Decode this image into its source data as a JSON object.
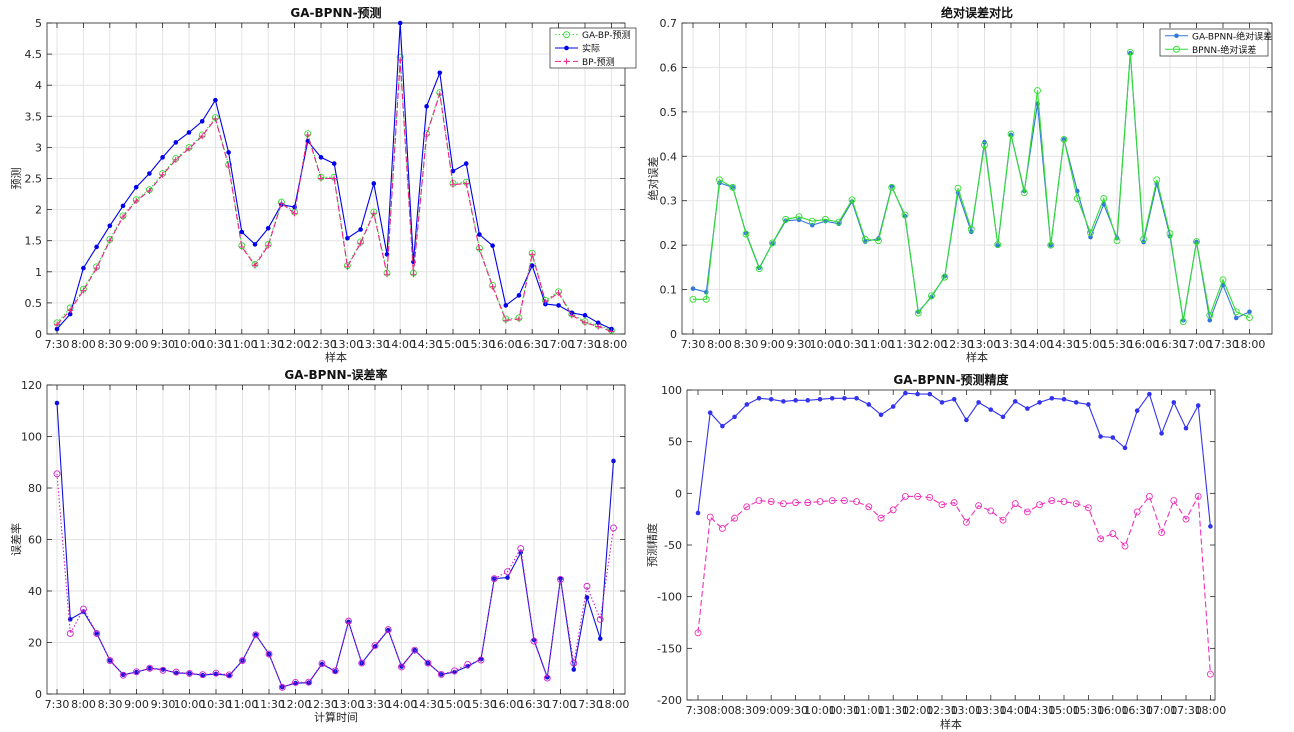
{
  "chart_data": [
    {
      "type": "line",
      "title": "GA-BPNN-预测",
      "xlabel": "样本",
      "ylabel": "预测",
      "ylim": [
        0,
        5
      ],
      "yticks": [
        "0",
        "0.5",
        "1",
        "1.5",
        "2",
        "2.5",
        "3",
        "3.5",
        "4",
        "4.5",
        "5"
      ],
      "xticks": [
        "7:30",
        "8:00",
        "8:30",
        "9:00",
        "9:30",
        "10:00",
        "10:30",
        "11:00",
        "11:30",
        "12:00",
        "12:30",
        "13:00",
        "13:30",
        "14:00",
        "14:30",
        "15:00",
        "15:30",
        "16:00",
        "16:30",
        "17:00",
        "17:30",
        "18:00"
      ],
      "grid": true,
      "legend_position": "top-right",
      "series": [
        {
          "name": "GA-BP-预测",
          "color": "#33dd33",
          "marker": "circle",
          "dash": "dotted",
          "values": [
            0.18,
            0.42,
            0.72,
            1.08,
            1.52,
            1.9,
            2.16,
            2.32,
            2.58,
            2.82,
            3.0,
            3.2,
            3.48,
            2.72,
            1.42,
            1.12,
            1.44,
            2.12,
            1.96,
            3.22,
            2.52,
            2.52,
            1.1,
            1.48,
            1.96,
            0.98,
            4.45,
            0.98,
            3.22,
            3.88,
            2.42,
            2.44,
            1.38,
            0.78,
            0.24,
            0.26,
            1.3,
            0.54,
            0.68,
            0.32,
            0.2,
            0.14,
            0.06
          ]
        },
        {
          "name": "实际",
          "color": "#0000ee",
          "marker": "dot",
          "dash": "solid",
          "values": [
            0.08,
            0.32,
            1.06,
            1.4,
            1.74,
            2.06,
            2.36,
            2.58,
            2.84,
            3.08,
            3.24,
            3.42,
            3.76,
            2.92,
            1.64,
            1.44,
            1.7,
            2.08,
            2.04,
            3.1,
            2.84,
            2.74,
            1.54,
            1.68,
            2.42,
            1.28,
            5.0,
            1.16,
            3.66,
            4.2,
            2.62,
            2.74,
            1.6,
            1.42,
            0.46,
            0.62,
            1.1,
            0.48,
            0.46,
            0.34,
            0.3,
            0.18,
            0.08
          ]
        },
        {
          "name": "BP-预测",
          "color": "#ee2288",
          "marker": "plus",
          "dash": "dashed",
          "values": [
            0.15,
            0.38,
            0.7,
            1.06,
            1.5,
            1.88,
            2.14,
            2.3,
            2.56,
            2.8,
            2.98,
            3.18,
            3.46,
            2.7,
            1.4,
            1.1,
            1.42,
            2.1,
            1.94,
            3.2,
            2.5,
            2.5,
            1.08,
            1.46,
            1.94,
            0.96,
            4.4,
            0.96,
            3.2,
            3.86,
            2.4,
            2.42,
            1.36,
            0.76,
            0.22,
            0.24,
            1.28,
            0.52,
            0.66,
            0.3,
            0.18,
            0.12,
            0.04
          ]
        }
      ]
    },
    {
      "type": "line",
      "title": "绝对误差对比",
      "xlabel": "样本",
      "ylabel": "绝对误差",
      "ylim": [
        0,
        0.7
      ],
      "yticks": [
        "0",
        "0.1",
        "0.2",
        "0.3",
        "0.4",
        "0.5",
        "0.6",
        "0.7"
      ],
      "xticks": [
        "7:30",
        "8:00",
        "8:30",
        "9:00",
        "9:30",
        "10:00",
        "10:30",
        "11:00",
        "11:30",
        "12:00",
        "12:30",
        "13:00",
        "13:30",
        "14:00",
        "14:30",
        "15:00",
        "15:30",
        "16:00",
        "16:30",
        "17:00",
        "17:30",
        "18:00"
      ],
      "grid": true,
      "legend_position": "top-right",
      "series": [
        {
          "name": "GA-BPNN-绝对误差",
          "color": "#3377dd",
          "marker": "dot",
          "dash": "solid",
          "values": [
            0.102,
            0.094,
            0.34,
            0.33,
            0.227,
            0.149,
            0.204,
            0.255,
            0.257,
            0.245,
            0.254,
            0.248,
            0.298,
            0.208,
            0.215,
            0.332,
            0.265,
            0.05,
            0.083,
            0.13,
            0.318,
            0.23,
            0.432,
            0.2,
            0.448,
            0.322,
            0.518,
            0.2,
            0.438,
            0.322,
            0.218,
            0.292,
            0.216,
            0.632,
            0.207,
            0.338,
            0.22,
            0.031,
            0.207,
            0.031,
            0.11,
            0.036,
            0.05
          ]
        },
        {
          "name": "BPNN-绝对误差",
          "color": "#33dd33",
          "marker": "circle",
          "dash": "solid",
          "values": [
            0.078,
            0.078,
            0.347,
            0.33,
            0.225,
            0.147,
            0.205,
            0.258,
            0.264,
            0.254,
            0.258,
            0.252,
            0.302,
            0.213,
            0.21,
            0.33,
            0.268,
            0.047,
            0.086,
            0.128,
            0.328,
            0.236,
            0.425,
            0.201,
            0.45,
            0.318,
            0.548,
            0.2,
            0.438,
            0.305,
            0.228,
            0.305,
            0.21,
            0.634,
            0.213,
            0.347,
            0.226,
            0.028,
            0.208,
            0.042,
            0.122,
            0.05,
            0.037
          ]
        }
      ]
    },
    {
      "type": "line",
      "title": "GA-BPNN-误差率",
      "xlabel": "计算时间",
      "ylabel": "误差率",
      "ylim": [
        0,
        120
      ],
      "yticks": [
        "0",
        "20",
        "40",
        "60",
        "80",
        "100",
        "120"
      ],
      "xticks": [
        "7:30",
        "8:00",
        "8:30",
        "9:00",
        "9:30",
        "10:00",
        "10:30",
        "11:00",
        "11:30",
        "12:00",
        "12:30",
        "13:00",
        "13:30",
        "14:00",
        "14:30",
        "15:00",
        "15:30",
        "16:00",
        "16:30",
        "17:00",
        "17:30",
        "18:00"
      ],
      "grid": true,
      "series": [
        {
          "name": "",
          "color": "#1111dd",
          "marker": "dot",
          "dash": "solid",
          "values": [
            113,
            29,
            32,
            23.5,
            13,
            7.5,
            8.5,
            10,
            9.5,
            8.2,
            8,
            7.3,
            7.8,
            7.2,
            13,
            23,
            15.5,
            2.7,
            4.2,
            4.4,
            11.6,
            8.8,
            28,
            12,
            18.5,
            24.8,
            10.7,
            17,
            12,
            7.6,
            8.5,
            10.8,
            13.5,
            44.8,
            45.2,
            55,
            21,
            6.5,
            44.8,
            9.5,
            37.5,
            21.5,
            90.5
          ]
        },
        {
          "name": "",
          "color": "#cc22cc",
          "marker": "circle",
          "dash": "dotted",
          "values": [
            85.5,
            23.5,
            33,
            23.5,
            13,
            7.3,
            8.6,
            10,
            9.2,
            8.5,
            8,
            7.5,
            8.1,
            7.4,
            13,
            23,
            15.5,
            2.6,
            4.5,
            4.6,
            11.8,
            9,
            28.3,
            12,
            18.8,
            25,
            10.5,
            17,
            12,
            7.6,
            9,
            11.5,
            13.2,
            44.8,
            47.5,
            56.5,
            20.5,
            6.2,
            44.5,
            12,
            41.8,
            29,
            64.5
          ]
        }
      ]
    },
    {
      "type": "line",
      "title": "GA-BPNN-预测精度",
      "xlabel": "样本",
      "ylabel": "预测精度",
      "ylim": [
        -200,
        100
      ],
      "yticks": [
        "-200",
        "-150",
        "-100",
        "-50",
        "0",
        "50",
        "100"
      ],
      "xticks": [
        "7:30",
        "8:00",
        "8:30",
        "9:00",
        "9:30",
        "10:00",
        "10:30",
        "11:00",
        "11:30",
        "12:00",
        "12:30",
        "13:00",
        "13:30",
        "14:00",
        "14:30",
        "15:00",
        "15:30",
        "16:00",
        "16:30",
        "17:00",
        "17:30",
        "18:00"
      ],
      "grid": false,
      "series": [
        {
          "name": "",
          "color": "#3333ee",
          "marker": "dot",
          "dash": "solid",
          "values": [
            -19,
            78,
            65,
            74,
            86,
            92,
            91,
            89,
            90,
            90,
            91,
            92,
            92,
            92,
            86,
            76,
            84,
            97,
            96,
            96,
            88,
            91,
            71,
            88,
            81,
            74,
            89,
            82,
            88,
            92,
            91,
            88,
            86,
            55,
            54,
            44,
            80,
            96,
            58,
            88,
            63,
            85,
            -32
          ]
        },
        {
          "name": "",
          "color": "#ee33bb",
          "marker": "circle",
          "dash": "dashed",
          "values": [
            -135,
            -23,
            -34,
            -24,
            -13,
            -7,
            -8,
            -10,
            -9,
            -9,
            -8,
            -7,
            -7,
            -8,
            -13,
            -24,
            -16,
            -3,
            -3,
            -4,
            -11,
            -9,
            -28,
            -12,
            -17,
            -26,
            -10,
            -18,
            -11,
            -7,
            -8,
            -10,
            -14,
            -44,
            -39,
            -51,
            -18,
            -3,
            -38,
            -7,
            -25,
            -3,
            -175
          ]
        }
      ]
    }
  ]
}
